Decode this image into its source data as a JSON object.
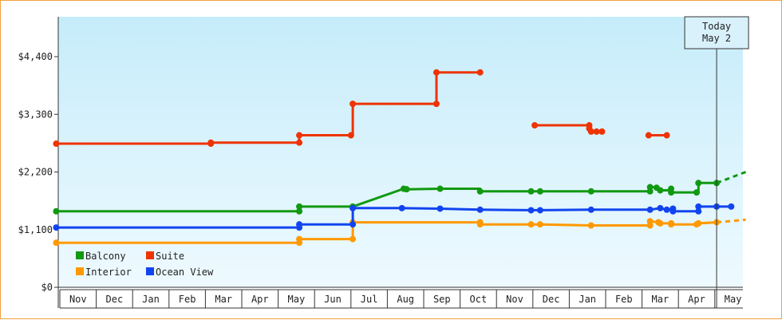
{
  "chart_data": {
    "type": "line",
    "ylim": [
      0,
      4950
    ],
    "y_ticks": [
      {
        "value": 0,
        "label": "$0"
      },
      {
        "value": 1100,
        "label": "$1,100"
      },
      {
        "value": 2200,
        "label": "$2,200"
      },
      {
        "value": 3300,
        "label": "$3,300"
      },
      {
        "value": 4400,
        "label": "$4,400"
      }
    ],
    "x_months": [
      "Nov",
      "Dec",
      "Jan",
      "Feb",
      "Mar",
      "Apr",
      "May",
      "Jun",
      "Jul",
      "Aug",
      "Sep",
      "Oct",
      "Nov",
      "Dec",
      "Jan",
      "Feb",
      "Mar",
      "Apr",
      "May"
    ],
    "x_units": "months since start of first Nov",
    "today_label": [
      "Today",
      "May 2"
    ],
    "today_x": 18.05,
    "grid": false,
    "legend_placement": "bottom-left",
    "series": [
      {
        "name": "Balcony",
        "color": "#119911",
        "points": [
          [
            -0.1,
            1450
          ],
          [
            6.58,
            1450
          ],
          [
            6.58,
            1540
          ],
          [
            8.05,
            1540
          ],
          [
            9.45,
            1880
          ],
          [
            9.53,
            1870
          ],
          [
            10.45,
            1880
          ],
          [
            11.55,
            1880
          ],
          [
            11.55,
            1830
          ],
          [
            12.95,
            1830
          ],
          [
            13.2,
            1830
          ],
          [
            14.6,
            1830
          ],
          [
            16.22,
            1830
          ],
          [
            16.22,
            1910
          ],
          [
            16.35,
            1910
          ],
          [
            16.4,
            1900
          ],
          [
            16.45,
            1880
          ],
          [
            16.5,
            1850
          ],
          [
            16.7,
            1850
          ],
          [
            16.8,
            1880
          ],
          [
            16.8,
            1810
          ],
          [
            17.5,
            1810
          ],
          [
            17.55,
            1810
          ],
          [
            17.55,
            1990
          ],
          [
            18.05,
            1990
          ]
        ],
        "markers": [
          [
            -0.1,
            1450
          ],
          [
            6.58,
            1450
          ],
          [
            6.58,
            1540
          ],
          [
            8.05,
            1540
          ],
          [
            9.45,
            1880
          ],
          [
            9.53,
            1870
          ],
          [
            10.45,
            1880
          ],
          [
            11.55,
            1830
          ],
          [
            12.95,
            1830
          ],
          [
            13.2,
            1830
          ],
          [
            14.6,
            1830
          ],
          [
            16.22,
            1830
          ],
          [
            16.22,
            1910
          ],
          [
            16.4,
            1900
          ],
          [
            16.5,
            1850
          ],
          [
            16.8,
            1880
          ],
          [
            16.8,
            1810
          ],
          [
            17.5,
            1810
          ],
          [
            17.55,
            1990
          ],
          [
            18.05,
            1990
          ]
        ],
        "projection": [
          [
            18.05,
            1990
          ],
          [
            18.85,
            2200
          ]
        ]
      },
      {
        "name": "Suite",
        "color": "#ee3300",
        "segments": [
          [
            [
              -0.1,
              2740
            ],
            [
              4.15,
              2740
            ],
            [
              4.15,
              2760
            ],
            [
              6.58,
              2760
            ],
            [
              6.58,
              2900
            ],
            [
              8.0,
              2900
            ],
            [
              8.05,
              2900
            ],
            [
              8.05,
              3500
            ],
            [
              10.35,
              3500
            ],
            [
              10.35,
              4100
            ],
            [
              11.55,
              4100
            ]
          ],
          [
            [
              13.05,
              3090
            ],
            [
              14.55,
              3090
            ],
            [
              14.55,
              3030
            ],
            [
              14.6,
              2970
            ],
            [
              14.7,
              2970
            ],
            [
              14.75,
              2970
            ],
            [
              14.9,
              2970
            ]
          ],
          [
            [
              16.18,
              2900
            ],
            [
              16.68,
              2900
            ]
          ]
        ],
        "markers": [
          [
            -0.1,
            2740
          ],
          [
            4.15,
            2740
          ],
          [
            4.15,
            2760
          ],
          [
            6.58,
            2760
          ],
          [
            6.58,
            2900
          ],
          [
            8.0,
            2900
          ],
          [
            8.05,
            3500
          ],
          [
            10.35,
            3500
          ],
          [
            10.35,
            4100
          ],
          [
            11.55,
            4100
          ],
          [
            13.05,
            3090
          ],
          [
            14.55,
            3090
          ],
          [
            14.55,
            3030
          ],
          [
            14.6,
            2970
          ],
          [
            14.75,
            2970
          ],
          [
            14.9,
            2970
          ],
          [
            16.18,
            2900
          ],
          [
            16.68,
            2900
          ]
        ]
      },
      {
        "name": "Interior",
        "color": "#ff9900",
        "points": [
          [
            -0.1,
            850
          ],
          [
            6.58,
            850
          ],
          [
            6.58,
            920
          ],
          [
            8.05,
            920
          ],
          [
            8.05,
            1240
          ],
          [
            11.55,
            1240
          ],
          [
            11.55,
            1200
          ],
          [
            12.95,
            1200
          ],
          [
            13.2,
            1200
          ],
          [
            14.6,
            1180
          ],
          [
            16.22,
            1180
          ],
          [
            16.22,
            1260
          ],
          [
            16.45,
            1240
          ],
          [
            16.5,
            1220
          ],
          [
            16.8,
            1220
          ],
          [
            16.8,
            1200
          ],
          [
            17.5,
            1200
          ],
          [
            17.55,
            1220
          ],
          [
            18.05,
            1240
          ]
        ],
        "markers": [
          [
            -0.1,
            850
          ],
          [
            6.58,
            850
          ],
          [
            6.58,
            920
          ],
          [
            8.05,
            920
          ],
          [
            8.05,
            1240
          ],
          [
            11.55,
            1240
          ],
          [
            11.55,
            1200
          ],
          [
            12.95,
            1200
          ],
          [
            13.2,
            1200
          ],
          [
            14.6,
            1180
          ],
          [
            16.22,
            1180
          ],
          [
            16.22,
            1260
          ],
          [
            16.45,
            1240
          ],
          [
            16.5,
            1220
          ],
          [
            16.8,
            1220
          ],
          [
            16.8,
            1200
          ],
          [
            17.5,
            1200
          ],
          [
            17.55,
            1220
          ],
          [
            18.05,
            1240
          ]
        ],
        "projection": [
          [
            18.05,
            1240
          ],
          [
            18.85,
            1290
          ]
        ]
      },
      {
        "name": "Ocean View",
        "color": "#1144ee",
        "points": [
          [
            -0.1,
            1140
          ],
          [
            6.58,
            1140
          ],
          [
            6.58,
            1200
          ],
          [
            8.05,
            1200
          ],
          [
            8.05,
            1510
          ],
          [
            9.4,
            1510
          ],
          [
            10.45,
            1500
          ],
          [
            11.55,
            1480
          ],
          [
            12.95,
            1470
          ],
          [
            13.2,
            1470
          ],
          [
            14.6,
            1480
          ],
          [
            16.22,
            1480
          ],
          [
            16.5,
            1510
          ],
          [
            16.68,
            1480
          ],
          [
            16.85,
            1500
          ],
          [
            16.85,
            1450
          ],
          [
            17.55,
            1450
          ],
          [
            17.55,
            1540
          ],
          [
            18.45,
            1540
          ]
        ],
        "markers": [
          [
            -0.1,
            1140
          ],
          [
            6.58,
            1140
          ],
          [
            6.58,
            1200
          ],
          [
            8.05,
            1200
          ],
          [
            8.05,
            1510
          ],
          [
            9.4,
            1510
          ],
          [
            10.45,
            1500
          ],
          [
            11.55,
            1480
          ],
          [
            12.95,
            1470
          ],
          [
            13.2,
            1470
          ],
          [
            14.6,
            1480
          ],
          [
            16.22,
            1480
          ],
          [
            16.5,
            1510
          ],
          [
            16.68,
            1480
          ],
          [
            16.85,
            1500
          ],
          [
            16.85,
            1450
          ],
          [
            17.55,
            1450
          ],
          [
            17.55,
            1540
          ],
          [
            18.05,
            1540
          ],
          [
            18.45,
            1540
          ]
        ]
      }
    ]
  }
}
